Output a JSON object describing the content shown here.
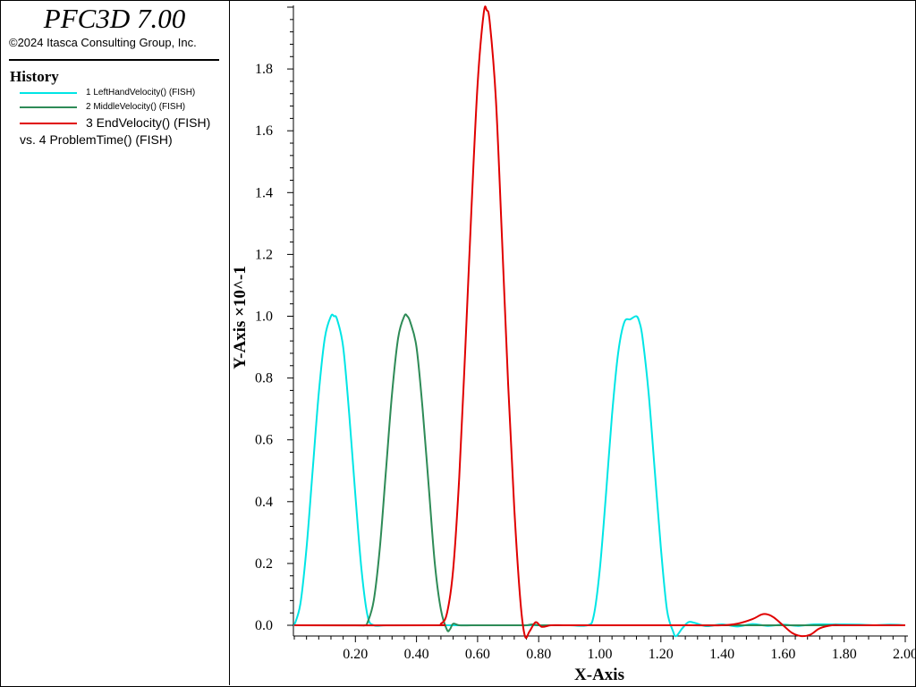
{
  "app": {
    "title": "PFC3D 7.00",
    "copyright": "©2024 Itasca Consulting Group, Inc."
  },
  "history": {
    "heading": "History",
    "vs_label": "vs. 4 ProblemTime() (FISH)",
    "entries": [
      {
        "label": "1 LeftHandVelocity() (FISH)",
        "color": "#00e5e5"
      },
      {
        "label": "2 MiddleVelocity() (FISH)",
        "color": "#2e8b57"
      },
      {
        "label": "3 EndVelocity() (FISH)",
        "color": "#e00000"
      }
    ]
  },
  "chart_data": {
    "type": "line",
    "xlabel": "X-Axis",
    "ylabel": "Y-Axis ×10^-1",
    "xlim": [
      0.0,
      2.0
    ],
    "ylim": [
      -0.04,
      2.0
    ],
    "xticks": [
      0.2,
      0.4,
      0.6,
      0.8,
      1.0,
      1.2,
      1.4,
      1.6,
      1.8,
      2.0
    ],
    "xtick_labels": [
      "0.20",
      "0.40",
      "0.60",
      "0.80",
      "1.00",
      "1.20",
      "1.40",
      "1.60",
      "1.80",
      "2.00"
    ],
    "yticks": [
      0.0,
      0.2,
      0.4,
      0.6,
      0.8,
      1.0,
      1.2,
      1.4,
      1.6,
      1.8
    ],
    "ytick_labels": [
      "0.0",
      "0.2",
      "0.4",
      "0.6",
      "0.8",
      "1.0",
      "1.2",
      "1.4",
      "1.6",
      "1.8"
    ],
    "grid": false,
    "series": [
      {
        "color": "#00e5e5",
        "x": [
          0.0,
          0.02,
          0.04,
          0.06,
          0.08,
          0.1,
          0.12,
          0.13,
          0.14,
          0.16,
          0.18,
          0.2,
          0.22,
          0.24,
          0.26,
          0.3,
          0.4,
          0.5,
          0.6,
          0.7,
          0.8,
          0.9,
          0.96,
          0.98,
          1.0,
          1.02,
          1.04,
          1.06,
          1.08,
          1.1,
          1.12,
          1.13,
          1.14,
          1.16,
          1.18,
          1.2,
          1.22,
          1.24,
          1.25,
          1.27,
          1.29,
          1.31,
          1.35,
          1.4,
          1.45,
          1.5,
          1.55,
          1.6,
          1.65,
          1.7,
          1.75,
          1.8,
          1.85,
          1.9,
          1.95,
          2.0
        ],
        "y": [
          0.0,
          0.07,
          0.25,
          0.5,
          0.75,
          0.93,
          1.0,
          1.0,
          0.99,
          0.9,
          0.68,
          0.42,
          0.18,
          0.03,
          0.0,
          0.0,
          0.0,
          0.0,
          0.0,
          0.0,
          0.0,
          0.0,
          0.0,
          0.03,
          0.18,
          0.42,
          0.68,
          0.88,
          0.98,
          0.99,
          1.0,
          0.98,
          0.93,
          0.75,
          0.5,
          0.25,
          0.05,
          -0.02,
          -0.035,
          -0.01,
          0.01,
          0.008,
          -0.003,
          0.003,
          -0.004,
          0.004,
          -0.002,
          0.002,
          -0.002,
          0.003,
          0.003,
          0.003,
          0.002,
          0.0,
          0.002,
          0.0
        ]
      },
      {
        "color": "#2e8b57",
        "x": [
          0.0,
          0.2,
          0.23,
          0.24,
          0.26,
          0.28,
          0.3,
          0.32,
          0.34,
          0.36,
          0.37,
          0.38,
          0.4,
          0.42,
          0.44,
          0.46,
          0.48,
          0.5,
          0.51,
          0.52,
          0.54,
          0.58,
          0.62,
          0.66,
          0.7,
          0.72,
          0.74,
          0.76,
          0.78,
          0.8,
          0.82,
          0.84,
          0.86,
          0.88,
          0.89,
          0.9,
          0.92,
          0.94,
          0.96,
          0.98,
          1.0,
          1.02,
          1.04,
          1.06,
          1.1,
          1.15,
          1.2,
          1.25,
          1.28,
          1.3,
          1.35,
          1.4,
          1.45,
          1.5,
          1.55,
          1.6,
          1.65,
          1.7,
          1.75,
          1.78,
          1.81,
          1.85,
          1.9,
          1.93,
          1.96,
          2.0
        ],
        "y": [
          0.0,
          0.0,
          0.0,
          0.01,
          0.08,
          0.25,
          0.5,
          0.75,
          0.93,
          1.0,
          1.0,
          0.98,
          0.9,
          0.7,
          0.45,
          0.2,
          0.05,
          -0.015,
          -0.012,
          0.005,
          0.0,
          0.0,
          0.0,
          0.0,
          0.0,
          0.0,
          0.0,
          0.0,
          0.003,
          0.0,
          0.0,
          0.0,
          0.0,
          0.0,
          0.0,
          0.0,
          0.0,
          0.0,
          0.0,
          0.0,
          0.0,
          0.0,
          0.0,
          0.0,
          0.0,
          0.0,
          0.0,
          0.0,
          0.0,
          0.0,
          0.0,
          0.0,
          0.0,
          0.0,
          0.0,
          0.0,
          0.0,
          0.0,
          0.0,
          0.0,
          0.0,
          0.0,
          0.0,
          0.0,
          0.0,
          0.0
        ]
      },
      {
        "color": "#e00000",
        "x": [
          0.0,
          0.45,
          0.48,
          0.5,
          0.52,
          0.54,
          0.56,
          0.58,
          0.6,
          0.62,
          0.63,
          0.64,
          0.66,
          0.68,
          0.7,
          0.72,
          0.74,
          0.755,
          0.77,
          0.79,
          0.81,
          0.84,
          0.88,
          0.92,
          0.96,
          1.0,
          1.1,
          1.2,
          1.3,
          1.4,
          1.45,
          1.5,
          1.53,
          1.55,
          1.57,
          1.6,
          1.63,
          1.66,
          1.69,
          1.72,
          1.76,
          1.8,
          1.9,
          2.0
        ],
        "y": [
          0.0,
          0.0,
          0.005,
          0.04,
          0.18,
          0.48,
          0.9,
          1.35,
          1.75,
          1.98,
          1.99,
          1.95,
          1.7,
          1.25,
          0.78,
          0.38,
          0.08,
          -0.035,
          -0.02,
          0.01,
          -0.005,
          0.0,
          0.0,
          0.0,
          0.0,
          0.0,
          0.0,
          0.0,
          0.0,
          0.0,
          0.005,
          0.02,
          0.035,
          0.035,
          0.025,
          0.0,
          -0.025,
          -0.035,
          -0.03,
          -0.01,
          0.0,
          0.0,
          0.0,
          0.0
        ]
      }
    ]
  }
}
